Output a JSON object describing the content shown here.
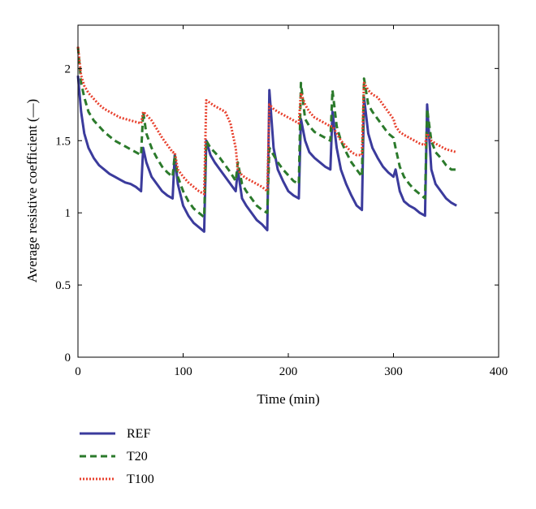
{
  "chart_data": {
    "type": "line",
    "title": "",
    "xlabel": "Time (min)",
    "ylabel": "Average resistive coefficient (—)",
    "xlim": [
      0,
      400
    ],
    "ylim": [
      0,
      2.3
    ],
    "x_ticks": [
      0,
      100,
      200,
      300,
      400
    ],
    "y_ticks": [
      0,
      0.5,
      1,
      1.5,
      2
    ],
    "x_tick_labels": [
      "0",
      "100",
      "200",
      "300",
      "400"
    ],
    "y_tick_labels": [
      "0",
      "0.5",
      "1",
      "1.5",
      "2"
    ],
    "grid": false,
    "legend_position": "below plot, left",
    "series": [
      {
        "name": "REF",
        "color": "#3b3b9c",
        "dash": "solid",
        "points": [
          [
            0,
            1.95
          ],
          [
            3,
            1.7
          ],
          [
            6,
            1.55
          ],
          [
            10,
            1.45
          ],
          [
            15,
            1.38
          ],
          [
            20,
            1.33
          ],
          [
            25,
            1.3
          ],
          [
            30,
            1.27
          ],
          [
            35,
            1.25
          ],
          [
            40,
            1.23
          ],
          [
            45,
            1.21
          ],
          [
            50,
            1.2
          ],
          [
            55,
            1.18
          ],
          [
            60,
            1.15
          ],
          [
            62,
            1.45
          ],
          [
            65,
            1.35
          ],
          [
            70,
            1.25
          ],
          [
            75,
            1.2
          ],
          [
            80,
            1.15
          ],
          [
            85,
            1.12
          ],
          [
            90,
            1.1
          ],
          [
            92,
            1.4
          ],
          [
            95,
            1.2
          ],
          [
            100,
            1.05
          ],
          [
            105,
            0.98
          ],
          [
            110,
            0.93
          ],
          [
            115,
            0.9
          ],
          [
            120,
            0.87
          ],
          [
            122,
            1.5
          ],
          [
            126,
            1.4
          ],
          [
            130,
            1.35
          ],
          [
            135,
            1.3
          ],
          [
            140,
            1.25
          ],
          [
            145,
            1.2
          ],
          [
            150,
            1.15
          ],
          [
            152,
            1.3
          ],
          [
            156,
            1.1
          ],
          [
            160,
            1.05
          ],
          [
            165,
            1.0
          ],
          [
            170,
            0.95
          ],
          [
            175,
            0.92
          ],
          [
            180,
            0.88
          ],
          [
            182,
            1.85
          ],
          [
            186,
            1.45
          ],
          [
            190,
            1.3
          ],
          [
            195,
            1.22
          ],
          [
            200,
            1.15
          ],
          [
            205,
            1.12
          ],
          [
            210,
            1.1
          ],
          [
            212,
            1.65
          ],
          [
            216,
            1.5
          ],
          [
            220,
            1.42
          ],
          [
            225,
            1.38
          ],
          [
            230,
            1.35
          ],
          [
            235,
            1.32
          ],
          [
            240,
            1.3
          ],
          [
            242,
            1.7
          ],
          [
            246,
            1.45
          ],
          [
            250,
            1.3
          ],
          [
            255,
            1.2
          ],
          [
            260,
            1.12
          ],
          [
            265,
            1.05
          ],
          [
            270,
            1.02
          ],
          [
            272,
            1.8
          ],
          [
            276,
            1.55
          ],
          [
            280,
            1.45
          ],
          [
            285,
            1.38
          ],
          [
            290,
            1.32
          ],
          [
            295,
            1.28
          ],
          [
            300,
            1.25
          ],
          [
            302,
            1.3
          ],
          [
            306,
            1.15
          ],
          [
            310,
            1.08
          ],
          [
            315,
            1.05
          ],
          [
            320,
            1.03
          ],
          [
            325,
            1.0
          ],
          [
            330,
            0.98
          ],
          [
            332,
            1.75
          ],
          [
            336,
            1.3
          ],
          [
            340,
            1.2
          ],
          [
            345,
            1.15
          ],
          [
            350,
            1.1
          ],
          [
            355,
            1.07
          ],
          [
            360,
            1.05
          ]
        ]
      },
      {
        "name": "T20",
        "color": "#2b7a2b",
        "dash": "dashed",
        "points": [
          [
            0,
            2.15
          ],
          [
            3,
            1.9
          ],
          [
            6,
            1.8
          ],
          [
            10,
            1.7
          ],
          [
            15,
            1.64
          ],
          [
            20,
            1.6
          ],
          [
            25,
            1.56
          ],
          [
            30,
            1.53
          ],
          [
            35,
            1.5
          ],
          [
            40,
            1.48
          ],
          [
            45,
            1.46
          ],
          [
            50,
            1.44
          ],
          [
            55,
            1.42
          ],
          [
            60,
            1.4
          ],
          [
            62,
            1.7
          ],
          [
            65,
            1.55
          ],
          [
            70,
            1.45
          ],
          [
            75,
            1.38
          ],
          [
            80,
            1.32
          ],
          [
            85,
            1.28
          ],
          [
            90,
            1.25
          ],
          [
            92,
            1.4
          ],
          [
            95,
            1.25
          ],
          [
            100,
            1.15
          ],
          [
            105,
            1.08
          ],
          [
            110,
            1.03
          ],
          [
            115,
            1.0
          ],
          [
            120,
            0.97
          ],
          [
            122,
            1.5
          ],
          [
            126,
            1.45
          ],
          [
            130,
            1.42
          ],
          [
            135,
            1.38
          ],
          [
            140,
            1.33
          ],
          [
            145,
            1.28
          ],
          [
            150,
            1.22
          ],
          [
            152,
            1.35
          ],
          [
            156,
            1.2
          ],
          [
            160,
            1.15
          ],
          [
            165,
            1.1
          ],
          [
            170,
            1.05
          ],
          [
            175,
            1.02
          ],
          [
            180,
            1.0
          ],
          [
            182,
            1.45
          ],
          [
            186,
            1.4
          ],
          [
            190,
            1.35
          ],
          [
            195,
            1.3
          ],
          [
            200,
            1.26
          ],
          [
            205,
            1.22
          ],
          [
            210,
            1.2
          ],
          [
            212,
            1.9
          ],
          [
            216,
            1.65
          ],
          [
            220,
            1.6
          ],
          [
            225,
            1.56
          ],
          [
            230,
            1.54
          ],
          [
            235,
            1.52
          ],
          [
            240,
            1.5
          ],
          [
            242,
            1.85
          ],
          [
            246,
            1.6
          ],
          [
            250,
            1.5
          ],
          [
            255,
            1.42
          ],
          [
            260,
            1.35
          ],
          [
            265,
            1.3
          ],
          [
            270,
            1.25
          ],
          [
            272,
            1.93
          ],
          [
            276,
            1.75
          ],
          [
            280,
            1.7
          ],
          [
            285,
            1.65
          ],
          [
            290,
            1.6
          ],
          [
            295,
            1.55
          ],
          [
            300,
            1.52
          ],
          [
            302,
            1.45
          ],
          [
            306,
            1.32
          ],
          [
            310,
            1.25
          ],
          [
            315,
            1.2
          ],
          [
            320,
            1.16
          ],
          [
            325,
            1.13
          ],
          [
            330,
            1.1
          ],
          [
            332,
            1.72
          ],
          [
            336,
            1.5
          ],
          [
            340,
            1.42
          ],
          [
            345,
            1.38
          ],
          [
            350,
            1.33
          ],
          [
            355,
            1.3
          ],
          [
            360,
            1.3
          ]
        ]
      },
      {
        "name": "T100",
        "color": "#e8412e",
        "dash": "dotted",
        "points": [
          [
            0,
            2.15
          ],
          [
            3,
            1.95
          ],
          [
            6,
            1.88
          ],
          [
            10,
            1.83
          ],
          [
            15,
            1.79
          ],
          [
            20,
            1.75
          ],
          [
            25,
            1.72
          ],
          [
            30,
            1.7
          ],
          [
            35,
            1.68
          ],
          [
            40,
            1.66
          ],
          [
            45,
            1.65
          ],
          [
            50,
            1.64
          ],
          [
            55,
            1.63
          ],
          [
            60,
            1.62
          ],
          [
            62,
            1.7
          ],
          [
            65,
            1.68
          ],
          [
            70,
            1.64
          ],
          [
            75,
            1.58
          ],
          [
            80,
            1.52
          ],
          [
            85,
            1.47
          ],
          [
            90,
            1.42
          ],
          [
            92,
            1.42
          ],
          [
            95,
            1.3
          ],
          [
            100,
            1.25
          ],
          [
            105,
            1.21
          ],
          [
            110,
            1.18
          ],
          [
            115,
            1.15
          ],
          [
            120,
            1.13
          ],
          [
            122,
            1.78
          ],
          [
            126,
            1.76
          ],
          [
            130,
            1.74
          ],
          [
            135,
            1.72
          ],
          [
            140,
            1.7
          ],
          [
            145,
            1.62
          ],
          [
            150,
            1.45
          ],
          [
            152,
            1.3
          ],
          [
            156,
            1.26
          ],
          [
            160,
            1.24
          ],
          [
            165,
            1.22
          ],
          [
            170,
            1.2
          ],
          [
            175,
            1.18
          ],
          [
            180,
            1.15
          ],
          [
            182,
            1.75
          ],
          [
            186,
            1.72
          ],
          [
            190,
            1.7
          ],
          [
            195,
            1.68
          ],
          [
            200,
            1.66
          ],
          [
            205,
            1.64
          ],
          [
            210,
            1.62
          ],
          [
            212,
            1.83
          ],
          [
            216,
            1.75
          ],
          [
            220,
            1.7
          ],
          [
            225,
            1.66
          ],
          [
            230,
            1.64
          ],
          [
            235,
            1.62
          ],
          [
            240,
            1.6
          ],
          [
            242,
            1.6
          ],
          [
            246,
            1.55
          ],
          [
            250,
            1.5
          ],
          [
            255,
            1.46
          ],
          [
            260,
            1.42
          ],
          [
            265,
            1.4
          ],
          [
            270,
            1.4
          ],
          [
            272,
            1.9
          ],
          [
            276,
            1.85
          ],
          [
            280,
            1.82
          ],
          [
            285,
            1.8
          ],
          [
            290,
            1.75
          ],
          [
            295,
            1.7
          ],
          [
            300,
            1.65
          ],
          [
            302,
            1.6
          ],
          [
            306,
            1.56
          ],
          [
            310,
            1.54
          ],
          [
            315,
            1.52
          ],
          [
            320,
            1.5
          ],
          [
            325,
            1.48
          ],
          [
            330,
            1.47
          ],
          [
            332,
            1.55
          ],
          [
            336,
            1.5
          ],
          [
            340,
            1.48
          ],
          [
            345,
            1.46
          ],
          [
            350,
            1.44
          ],
          [
            355,
            1.43
          ],
          [
            360,
            1.42
          ]
        ]
      }
    ]
  }
}
